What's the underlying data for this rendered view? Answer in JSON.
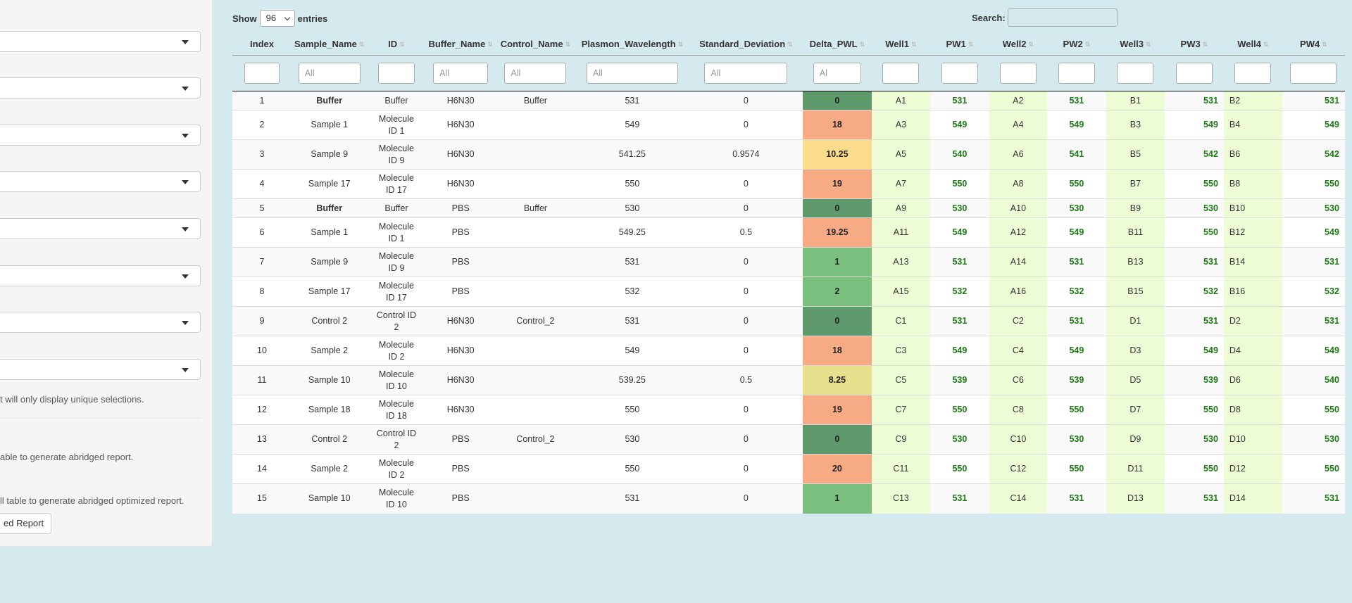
{
  "sidebar": {
    "note1": "t will only display unique selections.",
    "note2": "able to generate abridged report.",
    "note3": "ll table to generate abridged optimized report.",
    "report_button": "ed Report"
  },
  "controls": {
    "show_label": "Show",
    "entries_value": "96",
    "entries_label": "entries",
    "search_label": "Search:"
  },
  "columns": [
    "Index",
    "Sample_Name",
    "ID",
    "Buffer_Name",
    "Control_Name",
    "Plasmon_Wavelength",
    "Standard_Deviation",
    "Delta_PWL",
    "Well1",
    "PW1",
    "Well2",
    "PW2",
    "Well3",
    "PW3",
    "Well4",
    "PW4"
  ],
  "filters": [
    "",
    "All",
    "",
    "All",
    "All",
    "All",
    "All",
    "Al",
    "",
    "",
    "",
    "",
    "",
    "",
    "",
    ""
  ],
  "colors": {
    "delta_dark_green": "#5e9a6c",
    "delta_green": "#7bbf7e",
    "delta_orange": "#f6ab85",
    "delta_yellow": "#fbdc8c",
    "delta_olive_yellow": "#e6df8c",
    "well_bg": "#eefcd6",
    "pw_text": "#1b7a12"
  },
  "rows": [
    {
      "index": "1",
      "sample": "Buffer",
      "id": [
        "Buffer"
      ],
      "buffer": "H6N30",
      "control": "Buffer",
      "pwl": "531",
      "sd": "0",
      "delta": "0",
      "delta_color": "#5e9a6c",
      "w1": "A1",
      "pw1": "531",
      "w2": "A2",
      "pw2": "531",
      "w3": "B1",
      "pw3": "531",
      "w4": "B2",
      "pw4": "531"
    },
    {
      "index": "2",
      "sample": "Sample 1",
      "id": [
        "Molecule",
        "ID 1"
      ],
      "buffer": "H6N30",
      "control": "",
      "pwl": "549",
      "sd": "0",
      "delta": "18",
      "delta_color": "#f6ab85",
      "w1": "A3",
      "pw1": "549",
      "w2": "A4",
      "pw2": "549",
      "w3": "B3",
      "pw3": "549",
      "w4": "B4",
      "pw4": "549"
    },
    {
      "index": "3",
      "sample": "Sample 9",
      "id": [
        "Molecule",
        "ID 9"
      ],
      "buffer": "H6N30",
      "control": "",
      "pwl": "541.25",
      "sd": "0.9574",
      "delta": "10.25",
      "delta_color": "#fbdc8c",
      "w1": "A5",
      "pw1": "540",
      "w2": "A6",
      "pw2": "541",
      "w3": "B5",
      "pw3": "542",
      "w4": "B6",
      "pw4": "542"
    },
    {
      "index": "4",
      "sample": "Sample 17",
      "id": [
        "Molecule",
        "ID 17"
      ],
      "buffer": "H6N30",
      "control": "",
      "pwl": "550",
      "sd": "0",
      "delta": "19",
      "delta_color": "#f6ab85",
      "w1": "A7",
      "pw1": "550",
      "w2": "A8",
      "pw2": "550",
      "w3": "B7",
      "pw3": "550",
      "w4": "B8",
      "pw4": "550"
    },
    {
      "index": "5",
      "sample": "Buffer",
      "id": [
        "Buffer"
      ],
      "buffer": "PBS",
      "control": "Buffer",
      "pwl": "530",
      "sd": "0",
      "delta": "0",
      "delta_color": "#5e9a6c",
      "w1": "A9",
      "pw1": "530",
      "w2": "A10",
      "pw2": "530",
      "w3": "B9",
      "pw3": "530",
      "w4": "B10",
      "pw4": "530"
    },
    {
      "index": "6",
      "sample": "Sample 1",
      "id": [
        "Molecule",
        "ID 1"
      ],
      "buffer": "PBS",
      "control": "",
      "pwl": "549.25",
      "sd": "0.5",
      "delta": "19.25",
      "delta_color": "#f6ab85",
      "w1": "A11",
      "pw1": "549",
      "w2": "A12",
      "pw2": "549",
      "w3": "B11",
      "pw3": "550",
      "w4": "B12",
      "pw4": "549"
    },
    {
      "index": "7",
      "sample": "Sample 9",
      "id": [
        "Molecule",
        "ID 9"
      ],
      "buffer": "PBS",
      "control": "",
      "pwl": "531",
      "sd": "0",
      "delta": "1",
      "delta_color": "#7bbf7e",
      "w1": "A13",
      "pw1": "531",
      "w2": "A14",
      "pw2": "531",
      "w3": "B13",
      "pw3": "531",
      "w4": "B14",
      "pw4": "531"
    },
    {
      "index": "8",
      "sample": "Sample 17",
      "id": [
        "Molecule",
        "ID 17"
      ],
      "buffer": "PBS",
      "control": "",
      "pwl": "532",
      "sd": "0",
      "delta": "2",
      "delta_color": "#7bbf7e",
      "w1": "A15",
      "pw1": "532",
      "w2": "A16",
      "pw2": "532",
      "w3": "B15",
      "pw3": "532",
      "w4": "B16",
      "pw4": "532"
    },
    {
      "index": "9",
      "sample": "Control 2",
      "id": [
        "Control ID",
        "2"
      ],
      "buffer": "H6N30",
      "control": "Control_2",
      "pwl": "531",
      "sd": "0",
      "delta": "0",
      "delta_color": "#5e9a6c",
      "w1": "C1",
      "pw1": "531",
      "w2": "C2",
      "pw2": "531",
      "w3": "D1",
      "pw3": "531",
      "w4": "D2",
      "pw4": "531"
    },
    {
      "index": "10",
      "sample": "Sample 2",
      "id": [
        "Molecule",
        "ID 2"
      ],
      "buffer": "H6N30",
      "control": "",
      "pwl": "549",
      "sd": "0",
      "delta": "18",
      "delta_color": "#f6ab85",
      "w1": "C3",
      "pw1": "549",
      "w2": "C4",
      "pw2": "549",
      "w3": "D3",
      "pw3": "549",
      "w4": "D4",
      "pw4": "549"
    },
    {
      "index": "11",
      "sample": "Sample 10",
      "id": [
        "Molecule",
        "ID 10"
      ],
      "buffer": "H6N30",
      "control": "",
      "pwl": "539.25",
      "sd": "0.5",
      "delta": "8.25",
      "delta_color": "#e6df8c",
      "w1": "C5",
      "pw1": "539",
      "w2": "C6",
      "pw2": "539",
      "w3": "D5",
      "pw3": "539",
      "w4": "D6",
      "pw4": "540"
    },
    {
      "index": "12",
      "sample": "Sample 18",
      "id": [
        "Molecule",
        "ID 18"
      ],
      "buffer": "H6N30",
      "control": "",
      "pwl": "550",
      "sd": "0",
      "delta": "19",
      "delta_color": "#f6ab85",
      "w1": "C7",
      "pw1": "550",
      "w2": "C8",
      "pw2": "550",
      "w3": "D7",
      "pw3": "550",
      "w4": "D8",
      "pw4": "550"
    },
    {
      "index": "13",
      "sample": "Control 2",
      "id": [
        "Control ID",
        "2"
      ],
      "buffer": "PBS",
      "control": "Control_2",
      "pwl": "530",
      "sd": "0",
      "delta": "0",
      "delta_color": "#5e9a6c",
      "w1": "C9",
      "pw1": "530",
      "w2": "C10",
      "pw2": "530",
      "w3": "D9",
      "pw3": "530",
      "w4": "D10",
      "pw4": "530"
    },
    {
      "index": "14",
      "sample": "Sample 2",
      "id": [
        "Molecule",
        "ID 2"
      ],
      "buffer": "PBS",
      "control": "",
      "pwl": "550",
      "sd": "0",
      "delta": "20",
      "delta_color": "#f6ab85",
      "w1": "C11",
      "pw1": "550",
      "w2": "C12",
      "pw2": "550",
      "w3": "D11",
      "pw3": "550",
      "w4": "D12",
      "pw4": "550"
    },
    {
      "index": "15",
      "sample": "Sample 10",
      "id": [
        "Molecule",
        "ID 10"
      ],
      "buffer": "PBS",
      "control": "",
      "pwl": "531",
      "sd": "0",
      "delta": "1",
      "delta_color": "#7bbf7e",
      "w1": "C13",
      "pw1": "531",
      "w2": "C14",
      "pw2": "531",
      "w3": "D13",
      "pw3": "531",
      "w4": "D14",
      "pw4": "531"
    }
  ]
}
